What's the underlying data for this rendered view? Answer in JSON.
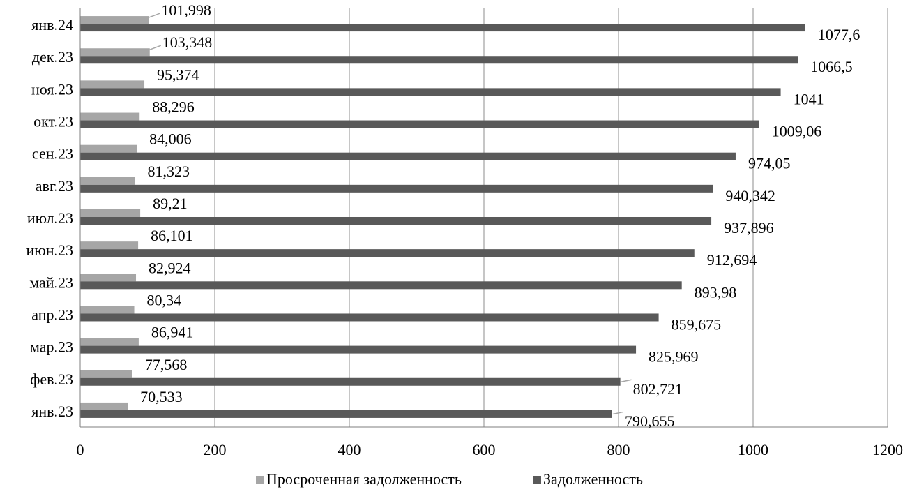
{
  "chart_data": {
    "type": "bar",
    "orientation": "horizontal",
    "categories": [
      "янв.23",
      "фев.23",
      "мар.23",
      "апр.23",
      "май.23",
      "июн.23",
      "июл.23",
      "авг.23",
      "сен.23",
      "окт.23",
      "ноя.23",
      "дек.23",
      "янв.24"
    ],
    "series": [
      {
        "name": "Просроченная задолженность",
        "color": "#a6a6a6",
        "values": [
          70.533,
          77.568,
          86.941,
          80.34,
          82.924,
          86.101,
          89.21,
          81.323,
          84.006,
          88.296,
          95.374,
          103.348,
          101.998
        ],
        "labels": [
          "70,533",
          "77,568",
          "86,941",
          "80,34",
          "82,924",
          "86,101",
          "89,21",
          "81,323",
          "84,006",
          "88,296",
          "95,374",
          "103,348",
          "101,998"
        ]
      },
      {
        "name": "Задолженность",
        "color": "#595959",
        "values": [
          790.655,
          802.721,
          825.969,
          859.675,
          893.98,
          912.694,
          937.896,
          940.342,
          974.05,
          1009.06,
          1041,
          1066.5,
          1077.6
        ],
        "labels": [
          "790,655",
          "802,721",
          "825,969",
          "859,675",
          "893,98",
          "912,694",
          "937,896",
          "940,342",
          "974,05",
          "1009,06",
          "1041",
          "1066,5",
          "1077,6"
        ]
      }
    ],
    "xlim": [
      0,
      1200
    ],
    "x_ticks": [
      "0",
      "200",
      "400",
      "600",
      "800",
      "1000",
      "1200"
    ],
    "grid": true,
    "legend": "bottom"
  }
}
